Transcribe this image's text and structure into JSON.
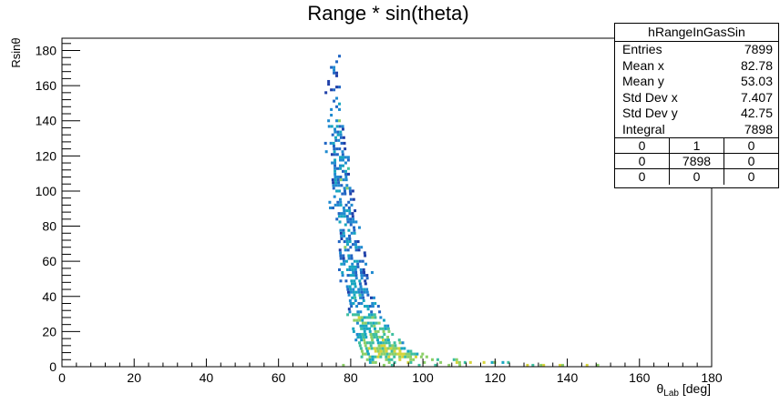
{
  "chart_data": {
    "type": "heatmap",
    "title": "Range * sin(theta)",
    "xlabel": {
      "main": "θ",
      "sub": "Lab",
      "unit": " [deg]"
    },
    "ylabel": "Rsinθ",
    "xlim": [
      0,
      180
    ],
    "ylim": [
      0,
      187
    ],
    "x_ticks": [
      "0",
      "20",
      "40",
      "60",
      "80",
      "100",
      "120",
      "140",
      "160",
      "180"
    ],
    "y_ticks": [
      "0",
      "20",
      "40",
      "60",
      "80",
      "100",
      "120",
      "140",
      "160",
      "180"
    ],
    "grid": false,
    "colormap": [
      "#1f3fa8",
      "#2166c4",
      "#1f8ad0",
      "#17a6c0",
      "#3ebfa0",
      "#8ccf68",
      "#d6d43a"
    ],
    "band_profile": [
      {
        "y": 178,
        "xmin": 73,
        "xmax": 77,
        "density": 0.1
      },
      {
        "y": 170,
        "xmin": 73,
        "xmax": 77,
        "density": 0.15
      },
      {
        "y": 160,
        "xmin": 73,
        "xmax": 77.5,
        "density": 0.2
      },
      {
        "y": 150,
        "xmin": 73,
        "xmax": 78,
        "density": 0.25
      },
      {
        "y": 140,
        "xmin": 73,
        "xmax": 78,
        "density": 0.35
      },
      {
        "y": 130,
        "xmin": 73.5,
        "xmax": 78.5,
        "density": 0.45
      },
      {
        "y": 120,
        "xmin": 74,
        "xmax": 79,
        "density": 0.55
      },
      {
        "y": 110,
        "xmin": 74,
        "xmax": 79.5,
        "density": 0.55
      },
      {
        "y": 100,
        "xmin": 74.5,
        "xmax": 80,
        "density": 0.55
      },
      {
        "y": 90,
        "xmin": 75,
        "xmax": 81,
        "density": 0.55
      },
      {
        "y": 80,
        "xmin": 75.5,
        "xmax": 82,
        "density": 0.55
      },
      {
        "y": 70,
        "xmin": 76,
        "xmax": 83,
        "density": 0.55
      },
      {
        "y": 60,
        "xmin": 76.5,
        "xmax": 84,
        "density": 0.55
      },
      {
        "y": 50,
        "xmin": 77,
        "xmax": 85,
        "density": 0.55
      },
      {
        "y": 40,
        "xmin": 78,
        "xmax": 86,
        "density": 0.6
      },
      {
        "y": 30,
        "xmin": 79,
        "xmax": 88,
        "density": 0.65
      },
      {
        "y": 20,
        "xmin": 80,
        "xmax": 91,
        "density": 0.75
      },
      {
        "y": 12,
        "xmin": 81,
        "xmax": 95,
        "density": 0.85
      },
      {
        "y": 6,
        "xmin": 82,
        "xmax": 100,
        "density": 0.8
      },
      {
        "y": 2,
        "xmin": 84,
        "xmax": 130,
        "density": 0.35
      },
      {
        "y": 0,
        "xmin": 75,
        "xmax": 170,
        "density": 0.1
      }
    ]
  },
  "stats": {
    "name": "hRangeInGasSin",
    "rows": [
      {
        "label": "Entries",
        "value": "7899"
      },
      {
        "label": "Mean x",
        "value": "82.78"
      },
      {
        "label": "Mean y",
        "value": "53.03"
      },
      {
        "label": "Std Dev x",
        "value": "7.407"
      },
      {
        "label": "Std Dev y",
        "value": "42.75"
      },
      {
        "label": "Integral",
        "value": "7898"
      }
    ],
    "quadrants": [
      "0",
      "1",
      "0",
      "0",
      "7898",
      "0",
      "0",
      "0",
      "0"
    ]
  }
}
